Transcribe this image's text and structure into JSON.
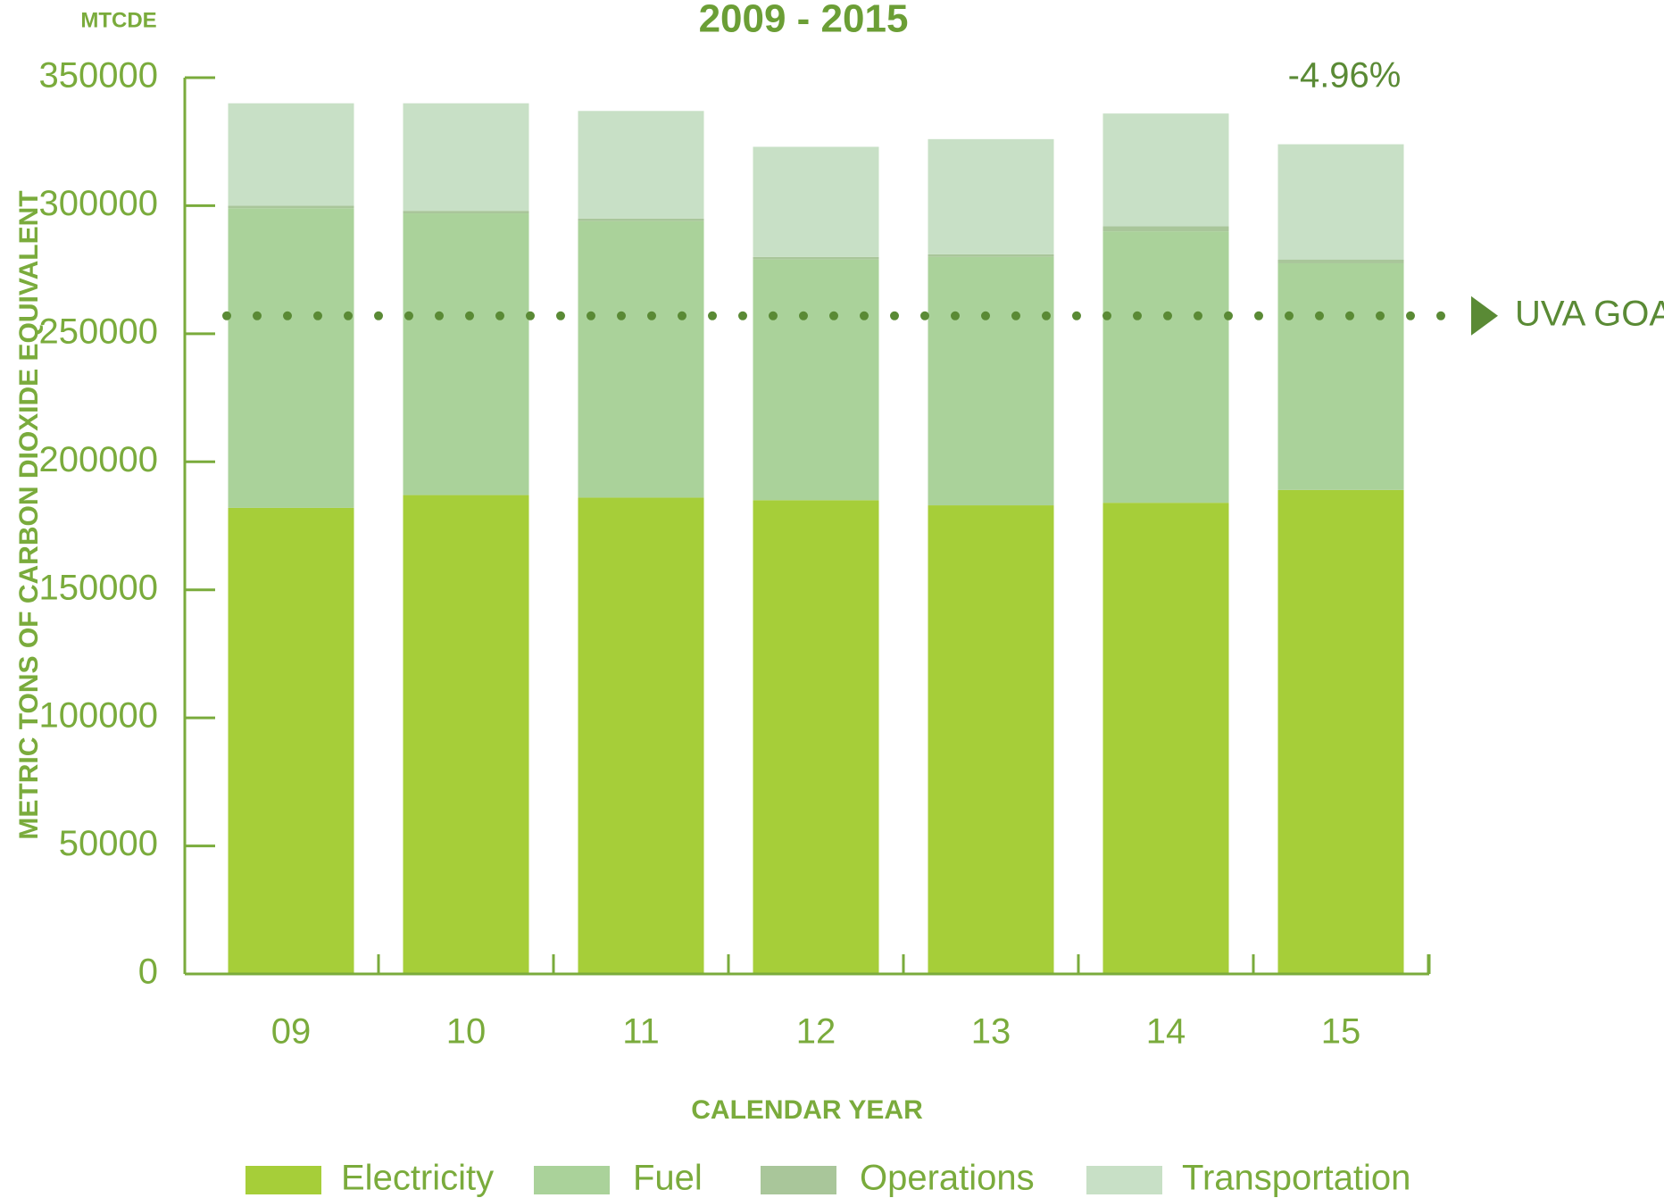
{
  "chart_data": {
    "type": "stacked_bar",
    "title": "2009 - 2015",
    "unit_label": "MTCDE",
    "y_label": "METRIC TONS OF CARBON DIOXIDE EQUIVALENT",
    "x_label": "CALENDAR YEAR",
    "annotation": "-4.96%",
    "goal": {
      "value": 257000,
      "label": "UVA GOAL",
      "color": "#5a8a35"
    },
    "categories": [
      "09",
      "10",
      "11",
      "12",
      "13",
      "14",
      "15"
    ],
    "series": [
      {
        "name": "Electricity",
        "color": "#a6ce39",
        "values": [
          182000,
          187000,
          186000,
          185000,
          183000,
          184000,
          189000
        ]
      },
      {
        "name": "Fuel",
        "color": "#aad29a",
        "values": [
          117000,
          110000,
          108000,
          94000,
          97000,
          106000,
          88500
        ]
      },
      {
        "name": "Operations",
        "color": "#a9c69a",
        "values": [
          1000,
          1000,
          1000,
          1000,
          1000,
          2000,
          1500
        ]
      },
      {
        "name": "Transportation",
        "color": "#c8e0c6",
        "values": [
          40000,
          42000,
          42000,
          43000,
          45000,
          44000,
          45000
        ]
      }
    ],
    "ylim": [
      0,
      350000
    ],
    "yticks": [
      0,
      50000,
      100000,
      150000,
      200000,
      250000,
      300000,
      350000
    ]
  }
}
